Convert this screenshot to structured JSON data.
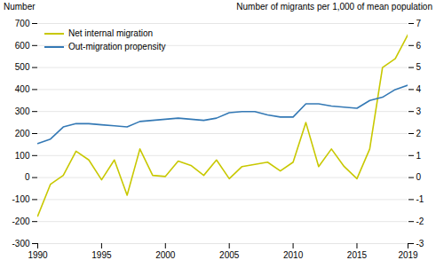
{
  "chart_data": {
    "type": "line",
    "ylabel": "Number",
    "y2label": "Number of migrants per 1,000 of mean population",
    "x": [
      1990,
      1991,
      1992,
      1993,
      1994,
      1995,
      1996,
      1997,
      1998,
      1999,
      2000,
      2001,
      2002,
      2003,
      2004,
      2005,
      2006,
      2007,
      2008,
      2009,
      2010,
      2011,
      2012,
      2013,
      2014,
      2015,
      2016,
      2017,
      2018,
      2019
    ],
    "series": [
      {
        "name": "Net internal migration",
        "color": "#c8c800",
        "values": [
          -175,
          -30,
          10,
          120,
          80,
          -10,
          80,
          -80,
          130,
          10,
          5,
          75,
          55,
          10,
          80,
          -5,
          50,
          60,
          70,
          30,
          70,
          250,
          50,
          130,
          50,
          -5,
          130,
          500,
          540,
          650
        ]
      },
      {
        "name": "Out-migration propensity",
        "color": "#3479b5",
        "axis": "y2",
        "values": [
          1.55,
          1.75,
          2.3,
          2.45,
          2.45,
          2.4,
          2.35,
          2.3,
          2.55,
          2.6,
          2.65,
          2.7,
          2.65,
          2.6,
          2.7,
          2.95,
          3.0,
          3.0,
          2.85,
          2.75,
          2.75,
          3.35,
          3.35,
          3.25,
          3.2,
          3.15,
          3.5,
          3.65,
          4.0,
          4.2
        ]
      }
    ],
    "xlim": [
      1990,
      2019
    ],
    "xticks": [
      1990,
      1995,
      2000,
      2005,
      2010,
      2015,
      2019
    ],
    "ylim": [
      -300,
      700
    ],
    "yticks": [
      -300,
      -200,
      -100,
      0,
      100,
      200,
      300,
      400,
      500,
      600,
      700
    ],
    "y2lim": [
      -3,
      7
    ],
    "y2ticks": [
      -3,
      -2,
      -1,
      0,
      1,
      2,
      3,
      4,
      5,
      6,
      7
    ],
    "grid": true,
    "legend": "upper left"
  }
}
